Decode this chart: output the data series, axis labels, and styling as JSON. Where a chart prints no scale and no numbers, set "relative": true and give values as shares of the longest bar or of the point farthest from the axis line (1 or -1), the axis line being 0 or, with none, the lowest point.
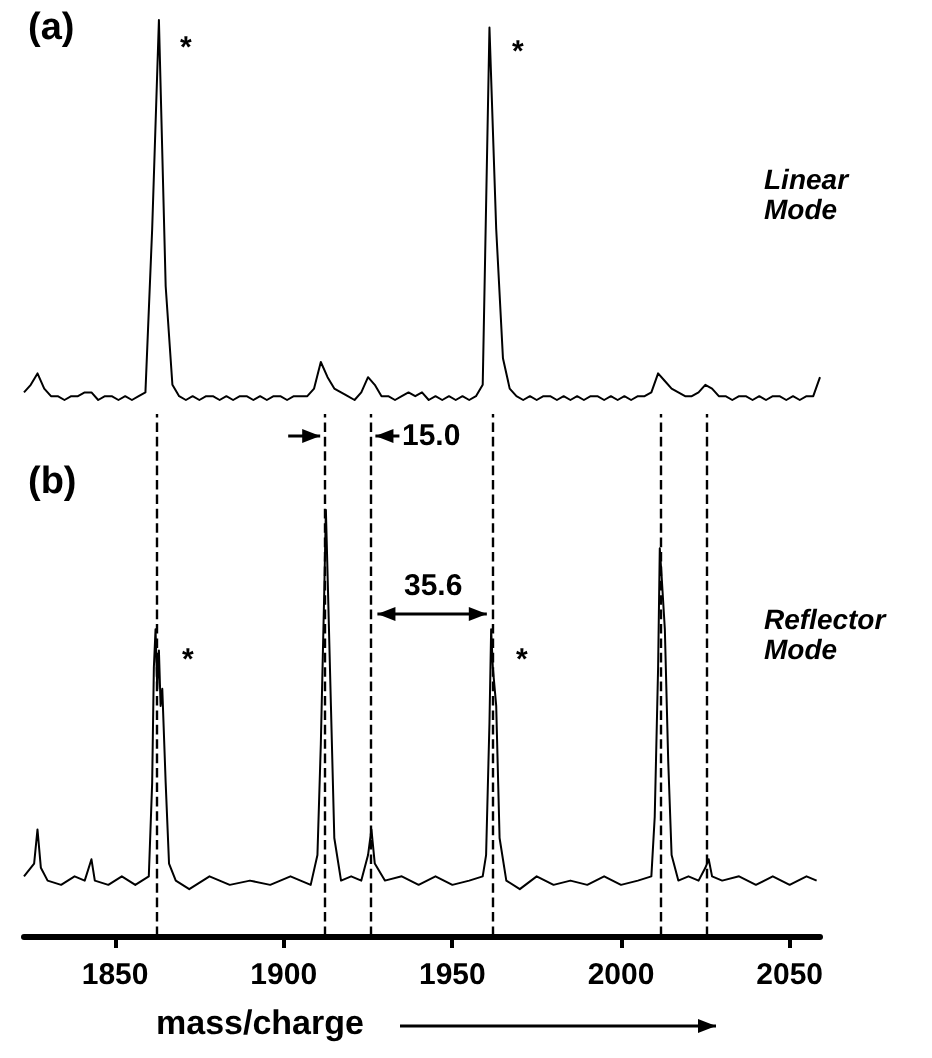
{
  "chart_data": [
    {
      "type": "line",
      "relative": true,
      "tick_labels": false,
      "grid": false,
      "line_style": "solid",
      "color": "#000000",
      "categories": [
        null,
        null,
        null,
        null,
        null,
        null,
        null,
        null,
        null,
        null,
        null,
        null,
        null,
        null,
        null,
        null,
        null,
        null,
        null,
        null,
        null,
        null,
        null,
        null,
        null,
        null,
        null,
        null,
        null,
        null,
        null,
        null,
        null,
        null,
        null,
        null,
        null,
        null,
        null,
        null,
        null,
        null,
        null,
        null,
        null,
        null,
        null,
        null,
        null,
        null,
        null,
        null,
        null,
        null,
        null,
        null,
        null,
        null,
        null,
        null,
        null,
        null,
        null,
        null,
        null,
        null,
        null,
        null,
        null,
        null,
        null,
        null,
        null,
        null,
        null,
        null,
        null,
        null,
        null,
        null,
        null,
        null,
        null,
        null,
        null,
        null,
        null,
        null,
        null,
        null,
        null,
        null,
        null,
        null,
        null,
        null,
        null,
        null,
        null,
        null,
        null,
        null,
        null,
        null,
        null,
        null,
        null,
        null,
        null,
        null,
        null,
        null,
        null,
        null,
        null,
        null,
        null,
        null,
        null
      ],
      "values": [
        0.02,
        0.04,
        0.07,
        0.03,
        0.01,
        0.01,
        0,
        0.01,
        0.01,
        0.02,
        0.02,
        0,
        0.01,
        0.01,
        0,
        0.01,
        0,
        0.01,
        0.02,
        0.45,
        1.0,
        0.3,
        0.04,
        0.01,
        0,
        0.01,
        0,
        0.01,
        0.01,
        0,
        0.01,
        0,
        0.01,
        0.01,
        0,
        0.01,
        0,
        0.01,
        0.01,
        0,
        0.01,
        0.01,
        0.01,
        0.03,
        0.1,
        0.06,
        0.03,
        0.02,
        0.01,
        0,
        0.02,
        0.06,
        0.04,
        0.01,
        0.01,
        0,
        0.01,
        0.02,
        0.01,
        0.02,
        0,
        0.01,
        0,
        0.01,
        0,
        0.01,
        0,
        0.01,
        0.04,
        0.98,
        0.45,
        0.11,
        0.03,
        0.01,
        0,
        0.01,
        0,
        0.01,
        0.01,
        0,
        0.01,
        0,
        0.01,
        0,
        0.01,
        0.01,
        0,
        0.01,
        0,
        0.01,
        0,
        0.01,
        0.01,
        0.02,
        0.07,
        0.05,
        0.03,
        0.02,
        0.01,
        0.01,
        0.02,
        0.04,
        0.03,
        0.01,
        0.01,
        0,
        0.01,
        0.01,
        0,
        0.01,
        0,
        0.01,
        0.01,
        0,
        0.01,
        0,
        0.01,
        0.01,
        0.06
      ],
      "annotations": [
        "(a)",
        "*",
        "*",
        "Linear Mode"
      ]
    },
    {
      "type": "line",
      "relative": true,
      "tick_labels": "x",
      "grid": false,
      "line_style": "solid",
      "color": "#000000",
      "xlim": [
        1823,
        2059
      ],
      "xticks": [
        1850,
        1900,
        1950,
        2000,
        2050
      ],
      "xlabel": "mass/charge",
      "x": [
        1823,
        1826,
        1827,
        1828,
        1830,
        1834,
        1838,
        1841,
        1843,
        1844,
        1848,
        1852,
        1856,
        1860,
        1861,
        1861.5,
        1862,
        1862.5,
        1863,
        1863.5,
        1864,
        1865,
        1866,
        1868,
        1872,
        1878,
        1884,
        1890,
        1896,
        1902,
        1908,
        1910,
        1911,
        1912,
        1912.5,
        1913,
        1914,
        1915,
        1917,
        1920,
        1923,
        1925,
        1926,
        1927,
        1930,
        1935,
        1940,
        1945,
        1950,
        1955,
        1959,
        1960,
        1961,
        1961.5,
        1962,
        1963,
        1964,
        1966,
        1970,
        1975,
        1980,
        1985,
        1990,
        1995,
        2000,
        2005,
        2009,
        2010,
        2011,
        2011.5,
        2012,
        2013,
        2014,
        2015,
        2017,
        2020,
        2023,
        2025,
        2026,
        2027,
        2030,
        2035,
        2040,
        2045,
        2050,
        2055,
        2058
      ],
      "values": [
        0.14,
        0.17,
        0.25,
        0.16,
        0.13,
        0.12,
        0.14,
        0.13,
        0.18,
        0.13,
        0.12,
        0.14,
        0.12,
        0.14,
        0.36,
        0.63,
        0.72,
        0.58,
        0.67,
        0.54,
        0.58,
        0.36,
        0.17,
        0.13,
        0.11,
        0.14,
        0.12,
        0.13,
        0.12,
        0.14,
        0.12,
        0.19,
        0.45,
        0.8,
        1.0,
        0.85,
        0.54,
        0.23,
        0.13,
        0.14,
        0.13,
        0.19,
        0.25,
        0.17,
        0.13,
        0.14,
        0.12,
        0.14,
        0.12,
        0.13,
        0.14,
        0.19,
        0.5,
        0.72,
        0.63,
        0.54,
        0.23,
        0.13,
        0.11,
        0.14,
        0.12,
        0.13,
        0.12,
        0.14,
        0.12,
        0.13,
        0.14,
        0.28,
        0.63,
        0.91,
        0.85,
        0.72,
        0.41,
        0.19,
        0.13,
        0.14,
        0.13,
        0.16,
        0.18,
        0.14,
        0.13,
        0.14,
        0.12,
        0.14,
        0.12,
        0.14,
        0.13
      ],
      "ref_lines": [
        {
          "axis": "x",
          "value": 1862.5,
          "line_style": "dashed",
          "color": "#000000"
        },
        {
          "axis": "x",
          "value": 1912,
          "line_style": "dashed",
          "color": "#000000"
        },
        {
          "axis": "x",
          "value": 1926,
          "line_style": "dashed",
          "color": "#000000"
        },
        {
          "axis": "x",
          "value": 1962,
          "line_style": "dashed",
          "color": "#000000"
        },
        {
          "axis": "x",
          "value": 2012,
          "line_style": "dashed",
          "color": "#000000"
        },
        {
          "axis": "x",
          "value": 2025.5,
          "line_style": "dashed",
          "color": "#000000"
        }
      ],
      "annotations": [
        "(b)",
        "*",
        "*",
        "15.0",
        "35.6",
        "Reflector Mode"
      ]
    }
  ]
}
